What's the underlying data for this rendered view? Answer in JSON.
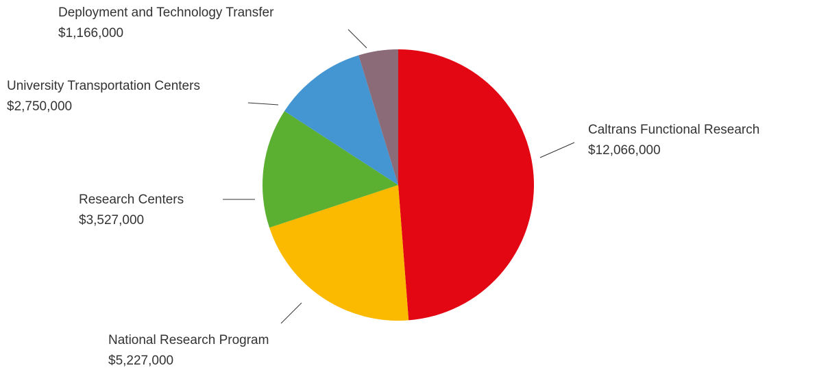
{
  "chart_data": {
    "type": "pie",
    "categories": [
      "Caltrans Functional Research",
      "National Research Program",
      "Research Centers",
      "University Transportation Centers",
      "Deployment and Technology Transfer"
    ],
    "values": [
      12066000,
      5227000,
      3527000,
      2750000,
      1166000
    ],
    "value_labels": [
      "$12,066,000",
      "$5,227,000",
      "$3,527,000",
      "$2,750,000",
      "$1,166,000"
    ],
    "colors": [
      "#e30613",
      "#fbb900",
      "#5bb031",
      "#4496d3",
      "#8b6b78"
    ]
  }
}
